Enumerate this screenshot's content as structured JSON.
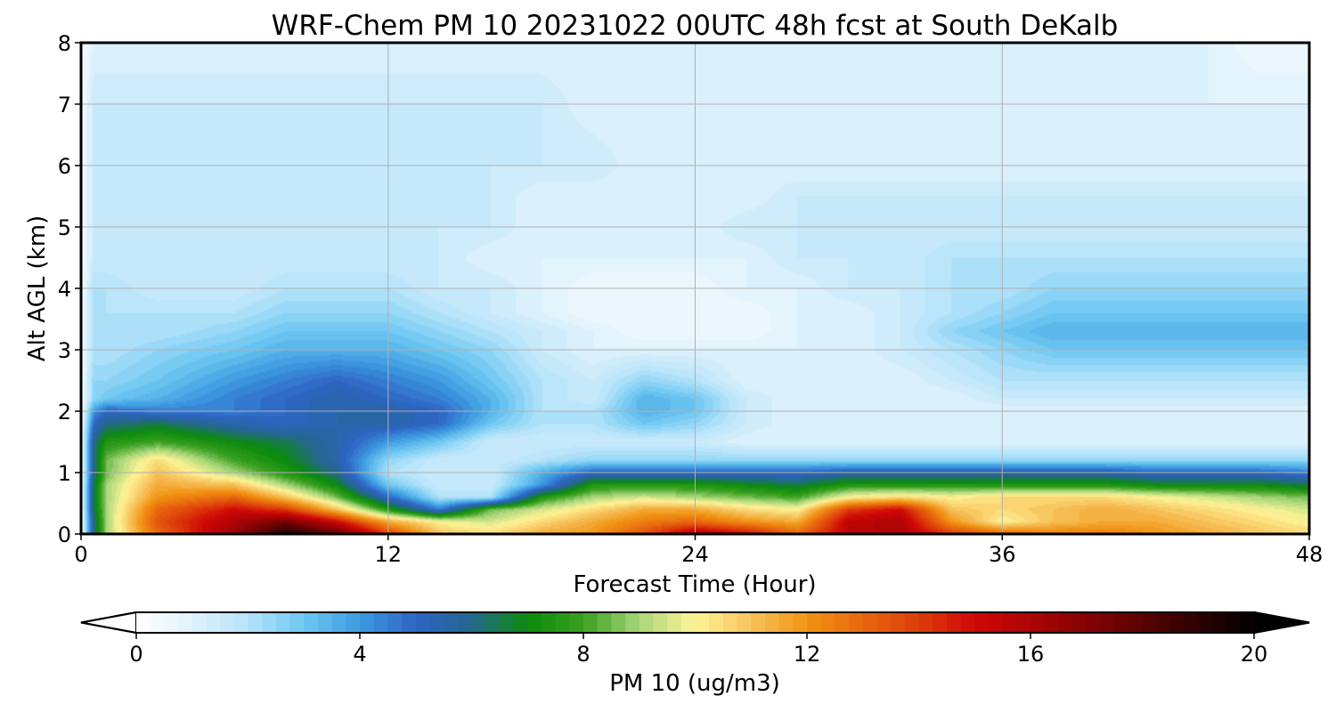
{
  "chart_data": {
    "type": "heatmap",
    "title": "WRF-Chem PM 10  20231022 00UTC 48h fcst at South DeKalb",
    "xlabel": "Forecast Time (Hour)",
    "ylabel": "Alt AGL (km)",
    "xlim": [
      0,
      48
    ],
    "ylim": [
      0,
      8
    ],
    "xticks": [
      0,
      12,
      24,
      36,
      48
    ],
    "xtick_labels": [
      "0",
      "12",
      "24",
      "36",
      "48"
    ],
    "yticks": [
      0,
      1,
      2,
      3,
      4,
      5,
      6,
      7,
      8
    ],
    "ytick_labels": [
      "0",
      "1",
      "2",
      "3",
      "4",
      "5",
      "6",
      "7",
      "8"
    ],
    "grid": true,
    "colorbar": {
      "label": "PM 10  (ug/m3)",
      "min": 0,
      "max": 20,
      "ticks": [
        0,
        4,
        8,
        12,
        16,
        20
      ],
      "tick_labels": [
        "0",
        "4",
        "8",
        "12",
        "16",
        "20"
      ],
      "extend": "both",
      "orientation": "horizontal",
      "colormap": [
        {
          "value": 0,
          "color": "#ffffff"
        },
        {
          "value": 1,
          "color": "#dff2fc"
        },
        {
          "value": 2,
          "color": "#b5e3fa"
        },
        {
          "value": 3,
          "color": "#6ec8f2"
        },
        {
          "value": 4,
          "color": "#3d9ae0"
        },
        {
          "value": 5,
          "color": "#2e64c4"
        },
        {
          "value": 6,
          "color": "#25668f"
        },
        {
          "value": 7,
          "color": "#0b8a0b"
        },
        {
          "value": 8,
          "color": "#3aa020"
        },
        {
          "value": 9,
          "color": "#a9d67a"
        },
        {
          "value": 10,
          "color": "#fff497"
        },
        {
          "value": 11,
          "color": "#f7c25c"
        },
        {
          "value": 12,
          "color": "#f19413"
        },
        {
          "value": 13,
          "color": "#e8670e"
        },
        {
          "value": 14,
          "color": "#dd3d0a"
        },
        {
          "value": 15,
          "color": "#cf0707"
        },
        {
          "value": 16,
          "color": "#ad0404"
        },
        {
          "value": 17,
          "color": "#850303"
        },
        {
          "value": 18,
          "color": "#5b0202"
        },
        {
          "value": 19,
          "color": "#2c0101"
        },
        {
          "value": 20,
          "color": "#000000"
        }
      ]
    },
    "x": [
      0,
      0.5,
      1,
      3,
      6,
      8,
      10,
      12,
      14,
      16,
      18,
      20,
      22,
      24,
      26,
      28,
      30,
      32,
      34,
      36,
      38,
      40,
      42,
      44,
      46,
      48
    ],
    "y": [
      0,
      0.2,
      0.4,
      0.6,
      0.8,
      1.0,
      1.2,
      1.5,
      1.8,
      2.0,
      2.2,
      2.5,
      3.0,
      3.3,
      3.6,
      4.0,
      4.5,
      5.0,
      5.5,
      6.0,
      7.0,
      8.0
    ],
    "z": [
      [
        0.2,
        6.0,
        9.0,
        13.0,
        16.5,
        19.5,
        18.0,
        14.0,
        11.0,
        10.5,
        11.5,
        12.0,
        13.5,
        16.0,
        15.0,
        13.0,
        15.5,
        16.0,
        14.0,
        13.0,
        12.5,
        12.5,
        12.0,
        11.5,
        11.0,
        10.5
      ],
      [
        0.2,
        6.0,
        9.0,
        13.5,
        16.0,
        17.5,
        15.0,
        11.5,
        10.0,
        9.5,
        10.5,
        11.5,
        12.5,
        13.0,
        12.0,
        11.5,
        15.5,
        16.0,
        12.0,
        10.0,
        11.0,
        11.5,
        11.5,
        11.0,
        10.5,
        10.0
      ],
      [
        0.2,
        6.5,
        9.0,
        13.0,
        15.0,
        14.0,
        11.0,
        7.5,
        4.5,
        8.5,
        9.5,
        10.5,
        11.5,
        11.5,
        10.5,
        10.0,
        14.0,
        15.0,
        11.0,
        10.5,
        11.0,
        11.5,
        11.0,
        10.5,
        10.0,
        9.5
      ],
      [
        0.2,
        6.5,
        9.0,
        12.0,
        13.0,
        11.0,
        8.5,
        5.0,
        2.0,
        2.0,
        7.5,
        9.0,
        9.5,
        9.0,
        8.5,
        8.0,
        10.0,
        10.5,
        10.0,
        10.5,
        10.5,
        10.5,
        10.0,
        9.5,
        9.0,
        8.5
      ],
      [
        0.2,
        6.5,
        9.0,
        11.5,
        11.0,
        9.0,
        7.0,
        3.0,
        1.5,
        1.5,
        4.0,
        7.5,
        7.5,
        7.5,
        7.0,
        6.5,
        7.5,
        7.5,
        7.5,
        7.5,
        7.5,
        7.5,
        7.0,
        7.0,
        7.0,
        6.5
      ],
      [
        0.2,
        6.0,
        8.5,
        11.0,
        9.0,
        7.5,
        6.0,
        2.0,
        1.5,
        1.5,
        3.5,
        5.0,
        5.0,
        5.0,
        5.0,
        5.0,
        5.5,
        5.5,
        5.5,
        5.5,
        5.5,
        5.5,
        5.0,
        5.0,
        5.0,
        4.5
      ],
      [
        0.2,
        6.0,
        8.5,
        10.5,
        8.0,
        7.0,
        5.5,
        2.5,
        1.5,
        1.5,
        2.0,
        2.5,
        2.5,
        2.5,
        2.5,
        2.5,
        2.5,
        2.5,
        2.5,
        2.5,
        2.5,
        2.5,
        2.5,
        2.5,
        2.5,
        2.5
      ],
      [
        0.2,
        6.0,
        7.5,
        8.0,
        7.0,
        6.5,
        5.5,
        4.0,
        3.0,
        1.5,
        1.5,
        1.5,
        1.5,
        1.5,
        1.0,
        1.0,
        1.0,
        1.0,
        1.0,
        1.0,
        1.0,
        1.0,
        1.0,
        1.0,
        1.0,
        1.0
      ],
      [
        0.2,
        5.0,
        6.0,
        6.5,
        5.5,
        5.0,
        5.5,
        5.5,
        5.0,
        3.0,
        2.0,
        2.0,
        3.0,
        2.5,
        1.5,
        1.0,
        1.0,
        1.0,
        1.0,
        1.0,
        1.0,
        1.0,
        1.0,
        1.0,
        1.0,
        1.0
      ],
      [
        0.2,
        4.0,
        5.0,
        4.5,
        4.5,
        5.0,
        5.5,
        5.5,
        5.0,
        3.5,
        2.0,
        2.0,
        3.5,
        3.0,
        1.5,
        1.0,
        1.0,
        1.0,
        1.0,
        1.0,
        1.0,
        1.0,
        1.0,
        1.0,
        1.0,
        1.0
      ],
      [
        0.2,
        2.5,
        3.0,
        3.5,
        4.5,
        5.0,
        5.5,
        5.0,
        4.5,
        3.5,
        2.0,
        1.5,
        3.5,
        3.0,
        1.5,
        1.0,
        1.0,
        1.0,
        1.0,
        1.5,
        1.5,
        1.5,
        1.5,
        1.5,
        1.5,
        1.5
      ],
      [
        0.2,
        2.5,
        2.5,
        3.0,
        4.0,
        4.5,
        5.0,
        4.5,
        4.0,
        3.0,
        2.0,
        1.5,
        2.5,
        2.0,
        1.0,
        1.0,
        1.0,
        1.0,
        1.5,
        2.0,
        2.0,
        2.0,
        2.0,
        2.0,
        2.0,
        2.0
      ],
      [
        0.2,
        2.0,
        2.0,
        2.5,
        3.0,
        3.5,
        3.5,
        3.5,
        3.0,
        2.5,
        1.5,
        1.0,
        1.0,
        1.0,
        1.0,
        1.0,
        1.0,
        1.5,
        2.0,
        2.5,
        3.0,
        3.0,
        3.0,
        3.0,
        3.0,
        3.0
      ],
      [
        0.2,
        2.0,
        2.0,
        2.0,
        2.5,
        3.0,
        3.0,
        3.0,
        2.5,
        2.0,
        1.5,
        1.0,
        0.5,
        0.5,
        0.5,
        1.0,
        1.0,
        1.5,
        2.5,
        3.0,
        3.5,
        3.5,
        3.5,
        3.5,
        3.5,
        3.5
      ],
      [
        0.2,
        2.0,
        2.0,
        2.0,
        2.0,
        2.5,
        2.5,
        2.5,
        2.0,
        1.5,
        1.0,
        0.5,
        0.5,
        0.5,
        0.5,
        1.0,
        1.0,
        1.5,
        2.0,
        2.5,
        3.0,
        3.0,
        3.0,
        3.0,
        3.0,
        3.0
      ],
      [
        0.2,
        2.0,
        2.0,
        1.5,
        1.5,
        2.0,
        2.0,
        2.0,
        1.5,
        1.5,
        1.0,
        0.5,
        0.5,
        0.5,
        1.0,
        1.0,
        1.5,
        1.5,
        2.0,
        2.0,
        2.5,
        2.5,
        2.5,
        2.5,
        2.5,
        2.5
      ],
      [
        0.2,
        1.5,
        1.5,
        1.5,
        1.5,
        1.5,
        1.5,
        1.5,
        1.5,
        1.0,
        1.0,
        1.0,
        1.0,
        1.0,
        1.0,
        1.5,
        1.5,
        1.5,
        2.0,
        2.0,
        2.0,
        2.0,
        2.0,
        2.0,
        2.0,
        2.0
      ],
      [
        0.2,
        1.5,
        1.5,
        1.5,
        1.5,
        1.5,
        1.5,
        1.5,
        1.5,
        1.5,
        1.0,
        1.0,
        1.0,
        1.0,
        1.5,
        1.5,
        1.5,
        1.5,
        1.5,
        1.5,
        1.5,
        1.5,
        1.5,
        1.5,
        1.5,
        1.5
      ],
      [
        0.2,
        1.5,
        1.5,
        1.5,
        1.5,
        1.5,
        1.5,
        1.5,
        1.5,
        1.5,
        1.0,
        1.0,
        1.0,
        1.0,
        1.0,
        1.5,
        1.5,
        1.5,
        1.5,
        1.5,
        1.5,
        1.5,
        1.5,
        1.5,
        1.5,
        1.5
      ],
      [
        0.2,
        1.5,
        1.5,
        1.5,
        1.5,
        1.5,
        1.5,
        1.5,
        1.5,
        1.5,
        1.5,
        1.5,
        1.0,
        1.0,
        1.0,
        1.0,
        1.0,
        1.0,
        1.0,
        1.0,
        1.0,
        1.0,
        1.0,
        1.0,
        1.0,
        1.0
      ],
      [
        0.2,
        1.5,
        1.5,
        1.5,
        1.5,
        1.5,
        1.5,
        1.5,
        1.5,
        1.5,
        1.5,
        1.0,
        1.0,
        1.0,
        1.0,
        1.0,
        1.0,
        1.0,
        1.0,
        1.0,
        1.0,
        1.0,
        1.0,
        1.0,
        1.0,
        1.0
      ],
      [
        0.2,
        1.0,
        1.0,
        1.0,
        1.0,
        1.0,
        1.0,
        1.0,
        1.0,
        1.0,
        1.0,
        1.0,
        1.0,
        1.0,
        1.0,
        1.0,
        1.0,
        1.0,
        1.0,
        1.0,
        1.0,
        1.0,
        1.0,
        1.0,
        0.5,
        0.5
      ]
    ]
  }
}
